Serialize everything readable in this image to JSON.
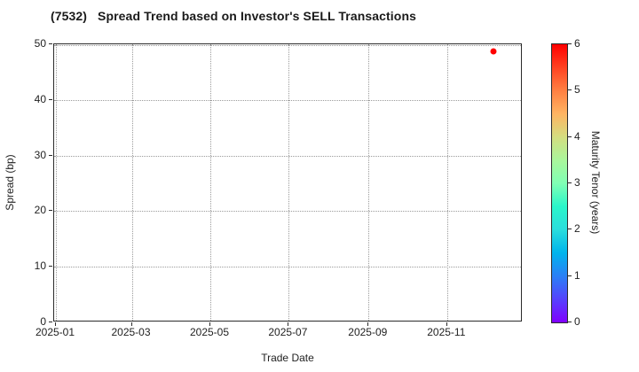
{
  "chart_data": {
    "type": "scatter",
    "title": "(7532)   Spread Trend based on Investor's SELL Transactions",
    "xlabel": "Trade Date",
    "ylabel": "Spread (bp)",
    "x_tick_labels": [
      "2025-01",
      "2025-03",
      "2025-05",
      "2025-07",
      "2025-09",
      "2025-11"
    ],
    "y_tick_labels": [
      "0",
      "10",
      "20",
      "30",
      "40",
      "50"
    ],
    "ylim": [
      0,
      50
    ],
    "xlim": [
      "2024-12-30",
      "2025-12-30"
    ],
    "grid": "dotted",
    "grid_y_values": [
      10,
      20,
      30,
      40,
      50
    ],
    "marker_color": "#ff0000",
    "points": [
      {
        "trade_date": "2025-12-08",
        "spread_bp": 48.5,
        "maturity_tenor_years": 6.0
      }
    ],
    "colorbar": {
      "label": "Maturity Tenor (years)",
      "tick_labels": [
        "0",
        "1",
        "2",
        "3",
        "4",
        "5",
        "6"
      ],
      "range": [
        0,
        6
      ],
      "colormap": "rainbow",
      "gradient_stops": [
        {
          "value": 0.0,
          "color": "#8000ff"
        },
        {
          "value": 0.5,
          "color": "#5542fd"
        },
        {
          "value": 1.0,
          "color": "#2a80f6"
        },
        {
          "value": 1.5,
          "color": "#00b4ec"
        },
        {
          "value": 2.0,
          "color": "#2adddd"
        },
        {
          "value": 2.5,
          "color": "#2af6ca"
        },
        {
          "value": 3.0,
          "color": "#80ffb4"
        },
        {
          "value": 3.5,
          "color": "#aaf69b"
        },
        {
          "value": 4.0,
          "color": "#d4dd80"
        },
        {
          "value": 4.5,
          "color": "#ffb462"
        },
        {
          "value": 5.0,
          "color": "#ff8042"
        },
        {
          "value": 5.5,
          "color": "#ff4221"
        },
        {
          "value": 6.0,
          "color": "#ff0000"
        }
      ]
    }
  }
}
